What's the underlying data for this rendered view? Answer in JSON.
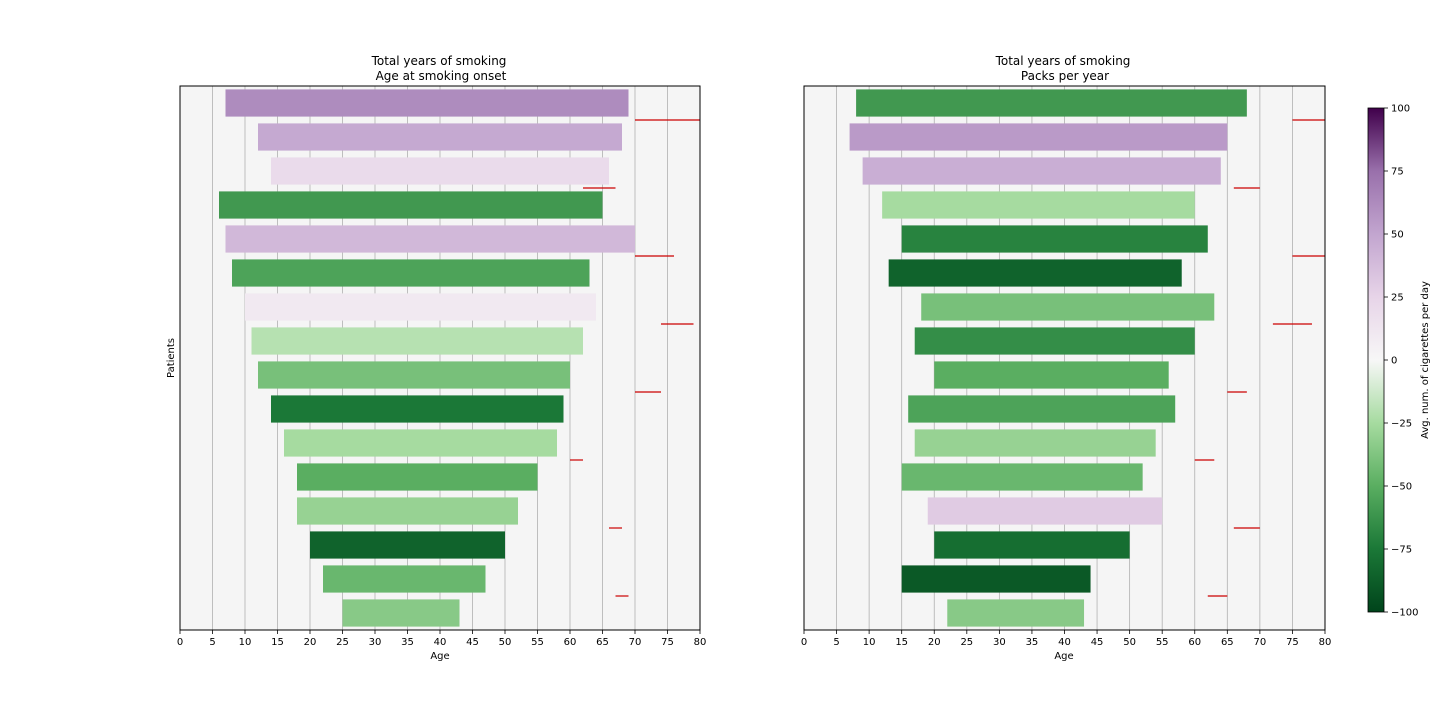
{
  "chart_data": [
    {
      "type": "bar",
      "orientation": "horizontal-range",
      "title": "Total years of smoking",
      "subtitle": "Age at smoking onset",
      "xlabel": "Age",
      "ylabel": "Patients",
      "xlim": [
        0,
        80
      ],
      "xticks": [
        "0",
        "5",
        "10",
        "15",
        "20",
        "25",
        "30",
        "35",
        "40",
        "45",
        "50",
        "55",
        "60",
        "65",
        "70",
        "75",
        "80"
      ],
      "grid": "vertical",
      "sort": "age at smoking onset",
      "series": [
        {
          "start_age": 7,
          "end_age": 69,
          "cigs_per_day_signed": 62
        },
        {
          "start_age": 12,
          "end_age": 68,
          "cigs_per_day_signed": 48
        },
        {
          "start_age": 14,
          "end_age": 66,
          "cigs_per_day_signed": 20
        },
        {
          "start_age": 6,
          "end_age": 65,
          "cigs_per_day_signed": -60
        },
        {
          "start_age": 7,
          "end_age": 70,
          "cigs_per_day_signed": 40
        },
        {
          "start_age": 8,
          "end_age": 63,
          "cigs_per_day_signed": -55
        },
        {
          "start_age": 10,
          "end_age": 64,
          "cigs_per_day_signed": 10
        },
        {
          "start_age": 11,
          "end_age": 62,
          "cigs_per_day_signed": -20
        },
        {
          "start_age": 12,
          "end_age": 60,
          "cigs_per_day_signed": -40
        },
        {
          "start_age": 14,
          "end_age": 59,
          "cigs_per_day_signed": -75
        },
        {
          "start_age": 16,
          "end_age": 58,
          "cigs_per_day_signed": -25
        },
        {
          "start_age": 18,
          "end_age": 55,
          "cigs_per_day_signed": -50
        },
        {
          "start_age": 18,
          "end_age": 52,
          "cigs_per_day_signed": -30
        },
        {
          "start_age": 20,
          "end_age": 50,
          "cigs_per_day_signed": -85
        },
        {
          "start_age": 22,
          "end_age": 47,
          "cigs_per_day_signed": -45
        },
        {
          "start_age": 25,
          "end_age": 43,
          "cigs_per_day_signed": -35
        }
      ],
      "events": [
        {
          "start_age": 70,
          "end_age": 80
        },
        {
          "start_age": 62,
          "end_age": 67
        },
        {
          "start_age": 70,
          "end_age": 76
        },
        {
          "start_age": 74,
          "end_age": 79
        },
        {
          "start_age": 70,
          "end_age": 74
        },
        {
          "start_age": 60,
          "end_age": 62
        },
        {
          "start_age": 66,
          "end_age": 68
        },
        {
          "start_age": 67,
          "end_age": 69
        }
      ]
    },
    {
      "type": "bar",
      "orientation": "horizontal-range",
      "title": "Total years of smoking",
      "subtitle": "Packs per year",
      "xlabel": "Age",
      "xlim": [
        0,
        80
      ],
      "xticks": [
        "0",
        "5",
        "10",
        "15",
        "20",
        "25",
        "30",
        "35",
        "40",
        "45",
        "50",
        "55",
        "60",
        "65",
        "70",
        "75",
        "80"
      ],
      "grid": "vertical",
      "sort": "packs per year",
      "series": [
        {
          "start_age": 8,
          "end_age": 68,
          "cigs_per_day_signed": -60
        },
        {
          "start_age": 7,
          "end_age": 65,
          "cigs_per_day_signed": 55
        },
        {
          "start_age": 9,
          "end_age": 64,
          "cigs_per_day_signed": 45
        },
        {
          "start_age": 12,
          "end_age": 60,
          "cigs_per_day_signed": -25
        },
        {
          "start_age": 15,
          "end_age": 62,
          "cigs_per_day_signed": -70
        },
        {
          "start_age": 13,
          "end_age": 58,
          "cigs_per_day_signed": -85
        },
        {
          "start_age": 18,
          "end_age": 63,
          "cigs_per_day_signed": -40
        },
        {
          "start_age": 17,
          "end_age": 60,
          "cigs_per_day_signed": -65
        },
        {
          "start_age": 20,
          "end_age": 56,
          "cigs_per_day_signed": -50
        },
        {
          "start_age": 16,
          "end_age": 57,
          "cigs_per_day_signed": -55
        },
        {
          "start_age": 17,
          "end_age": 54,
          "cigs_per_day_signed": -30
        },
        {
          "start_age": 15,
          "end_age": 52,
          "cigs_per_day_signed": -45
        },
        {
          "start_age": 19,
          "end_age": 55,
          "cigs_per_day_signed": 30
        },
        {
          "start_age": 20,
          "end_age": 50,
          "cigs_per_day_signed": -80
        },
        {
          "start_age": 15,
          "end_age": 44,
          "cigs_per_day_signed": -90
        },
        {
          "start_age": 22,
          "end_age": 43,
          "cigs_per_day_signed": -35
        }
      ],
      "events": [
        {
          "start_age": 75,
          "end_age": 80
        },
        {
          "start_age": 66,
          "end_age": 70
        },
        {
          "start_age": 75,
          "end_age": 80
        },
        {
          "start_age": 72,
          "end_age": 78
        },
        {
          "start_age": 65,
          "end_age": 68
        },
        {
          "start_age": 60,
          "end_age": 63
        },
        {
          "start_age": 66,
          "end_age": 70
        },
        {
          "start_age": 62,
          "end_age": 65
        }
      ]
    }
  ],
  "colorbar": {
    "label": "Avg. num. of cigarettes per day",
    "min": -100,
    "max": 100,
    "ticks": [
      "100",
      "75",
      "50",
      "25",
      "0",
      "−25",
      "−50",
      "−75",
      "−100"
    ],
    "colormap": "PRGn",
    "low_color": "#00441b",
    "mid_color": "#f7f7f7",
    "high_color": "#40004b"
  },
  "colors": {
    "axes_background": "#f5f5f5",
    "grid": "#b0b0b0",
    "event": "#cc0000"
  }
}
